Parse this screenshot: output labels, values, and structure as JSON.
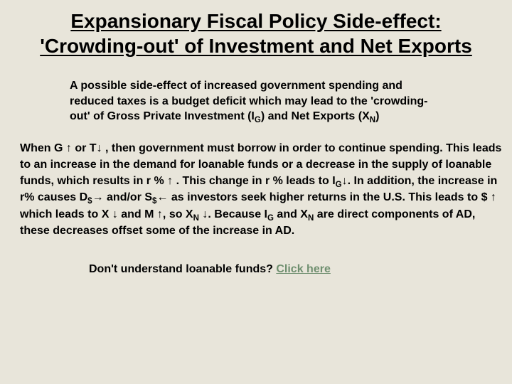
{
  "colors": {
    "background": "#e8e5da",
    "text": "#000000",
    "link": "#6f8f6f"
  },
  "typography": {
    "title_fontsize": 28,
    "body_fontsize": 16,
    "font_family": "Arial",
    "all_bold": true
  },
  "title": {
    "line1": "Expansionary Fiscal Policy Side-effect:",
    "line2": "'Crowding-out' of Investment and Net Exports"
  },
  "intro": {
    "p1a": "A possible side-effect of increased government spending and reduced taxes is a budget deficit which may lead to the 'crowding-out' of Gross Private Investment (I",
    "p1b": ") and Net Exports (X",
    "p1c": ")",
    "sub1": "G",
    "sub2": "N"
  },
  "body": {
    "t1": "When G ",
    "arr_up1": "↑",
    "t2": " or T",
    "arr_down1": "↓",
    "t3": " , then government must borrow in order to continue spending. This leads to an increase in the demand for loanable funds or a decrease in the supply of loanable funds, which results in r % ",
    "arr_up2": "↑",
    "t4": " . This change in r % leads to I",
    "sub_g1": "G",
    "arr_down2": "↓",
    "t5": ". In addition, the increase in r% causes D",
    "sub_dollar1": "$",
    "arr_right1": "→",
    "t6": " and/or S",
    "sub_dollar2": "$",
    "arr_left1": "←",
    "t7": " as investors seek higher returns in the U.S. This leads to $ ",
    "arr_up3": "↑",
    "t8": " which leads to X ",
    "arr_down3": "↓",
    "t9": " and M ",
    "arr_up4": "↑",
    "t10": ", so X",
    "sub_n1": "N",
    "arr_down4": "↓",
    "t11": ". Because  I",
    "sub_g2": "G",
    "t12": " and X",
    "sub_n2": "N",
    "t13": " are direct components of AD, these decreases offset some of the increase in AD."
  },
  "footer": {
    "text": "Don't understand loanable funds? ",
    "link_text": "Click here"
  }
}
